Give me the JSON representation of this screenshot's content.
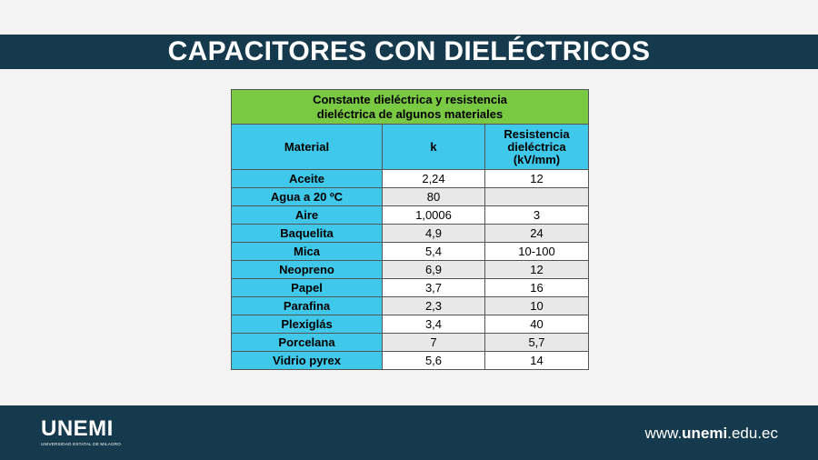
{
  "slide": {
    "title": "CAPACITORES CON DIELÉCTRICOS"
  },
  "table": {
    "caption_line1": "Constante dieléctrica y resistencia",
    "caption_line2": "dieléctrica de algunos materiales",
    "headers": {
      "material": "Material",
      "k": "k",
      "resistance_line1": "Resistencia",
      "resistance_line2": "dieléctrica",
      "resistance_line3": "(kV/mm)"
    },
    "rows": [
      {
        "material": "Aceite",
        "k": "2,24",
        "resistance": "12"
      },
      {
        "material": "Agua a 20 ºC",
        "k": "80",
        "resistance": ""
      },
      {
        "material": "Aire",
        "k": "1,0006",
        "resistance": "3"
      },
      {
        "material": "Baquelita",
        "k": "4,9",
        "resistance": "24"
      },
      {
        "material": "Mica",
        "k": "5,4",
        "resistance": "10-100"
      },
      {
        "material": "Neopreno",
        "k": "6,9",
        "resistance": "12"
      },
      {
        "material": "Papel",
        "k": "3,7",
        "resistance": "16"
      },
      {
        "material": "Parafina",
        "k": "2,3",
        "resistance": "10"
      },
      {
        "material": "Plexiglás",
        "k": "3,4",
        "resistance": "40"
      },
      {
        "material": "Porcelana",
        "k": "7",
        "resistance": "5,7"
      },
      {
        "material": "Vidrio pyrex",
        "k": "5,6",
        "resistance": "14"
      }
    ]
  },
  "footer": {
    "logo_text": "UNEMI",
    "logo_subtitle": "UNIVERSIDAD ESTATAL DE MILAGRO",
    "website_prefix": "www.",
    "website_brand": "unemi",
    "website_suffix": ".edu.ec"
  },
  "colors": {
    "title_bar": "#153a4d",
    "caption_green": "#7ac943",
    "header_cyan": "#3fc8ea",
    "row_alt_gray": "#e8e8e8"
  }
}
